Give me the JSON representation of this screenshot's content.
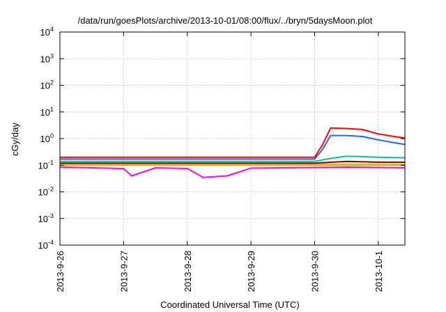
{
  "chart_data": {
    "type": "line",
    "title": "/data/run/goesPlots/archive/2013-10-01/08:00/flux/../bryn/5daysMoon.plot",
    "xlabel": "Coordinated Universal Time (UTC)",
    "ylabel": "cGy/day",
    "y_scale": "log",
    "ylim": [
      0.0001,
      10000
    ],
    "xlim": [
      "2013-09-26T00:00",
      "2013-10-01T10:00"
    ],
    "grid": true,
    "legend": "none",
    "x_ticks": [
      "2013-9-26",
      "2013-9-27",
      "2013-9-28",
      "2013-9-29",
      "2013-9-30",
      "2013-10-1"
    ],
    "y_ticks": [
      {
        "base": "10",
        "exp": "-4",
        "value": 0.0001
      },
      {
        "base": "10",
        "exp": "-3",
        "value": 0.001
      },
      {
        "base": "10",
        "exp": "-2",
        "value": 0.01
      },
      {
        "base": "10",
        "exp": "-1",
        "value": 0.1
      },
      {
        "base": "10",
        "exp": "0",
        "value": 1
      },
      {
        "base": "10",
        "exp": "1",
        "value": 10
      },
      {
        "base": "10",
        "exp": "2",
        "value": 100
      },
      {
        "base": "10",
        "exp": "3",
        "value": 1000
      },
      {
        "base": "10",
        "exp": "4",
        "value": 10000
      }
    ],
    "series": [
      {
        "color": "#ff00ff",
        "x": [
          "2013-09-26T00:00",
          "2013-09-26T12:00",
          "2013-09-27T00:00",
          "2013-09-27T03:00",
          "2013-09-27T12:00",
          "2013-09-28T00:00",
          "2013-09-28T06:00",
          "2013-09-28T15:00",
          "2013-09-29T00:00",
          "2013-09-29T12:00",
          "2013-09-30T00:00",
          "2013-09-30T12:00",
          "2013-10-01T00:00",
          "2013-10-01T10:00"
        ],
        "values": [
          0.085,
          0.08,
          0.075,
          0.04,
          0.08,
          0.075,
          0.035,
          0.04,
          0.078,
          0.08,
          0.082,
          0.085,
          0.082,
          0.08
        ]
      },
      {
        "color": "#ffa500",
        "x": [
          "2013-09-26T00:00",
          "2013-09-27T00:00",
          "2013-09-28T00:00",
          "2013-09-29T00:00",
          "2013-09-30T00:00",
          "2013-09-30T12:00",
          "2013-10-01T00:00",
          "2013-10-01T10:00"
        ],
        "values": [
          0.1,
          0.1,
          0.1,
          0.1,
          0.1,
          0.1,
          0.1,
          0.1
        ]
      },
      {
        "color": "#c8c800",
        "x": [
          "2013-09-26T00:00",
          "2013-09-27T00:00",
          "2013-09-28T00:00",
          "2013-09-29T00:00",
          "2013-09-30T00:00",
          "2013-09-30T12:00",
          "2013-10-01T00:00",
          "2013-10-01T10:00"
        ],
        "values": [
          0.11,
          0.11,
          0.11,
          0.11,
          0.11,
          0.11,
          0.11,
          0.11
        ]
      },
      {
        "color": "#800000",
        "x": [
          "2013-09-26T00:00",
          "2013-09-27T00:00",
          "2013-09-28T00:00",
          "2013-09-29T00:00",
          "2013-09-30T00:00",
          "2013-09-30T12:00",
          "2013-10-01T00:00",
          "2013-10-01T10:00"
        ],
        "values": [
          0.12,
          0.12,
          0.12,
          0.12,
          0.12,
          0.14,
          0.13,
          0.13
        ]
      },
      {
        "color": "#00c88c",
        "x": [
          "2013-09-26T00:00",
          "2013-09-27T00:00",
          "2013-09-28T00:00",
          "2013-09-29T00:00",
          "2013-09-30T00:00",
          "2013-09-30T06:00",
          "2013-09-30T12:00",
          "2013-10-01T00:00",
          "2013-10-01T10:00"
        ],
        "values": [
          0.14,
          0.14,
          0.14,
          0.14,
          0.14,
          0.18,
          0.22,
          0.2,
          0.19
        ]
      },
      {
        "color": "#1e64ff",
        "x": [
          "2013-09-26T00:00",
          "2013-09-27T00:00",
          "2013-09-28T00:00",
          "2013-09-29T00:00",
          "2013-09-30T00:00",
          "2013-09-30T03:00",
          "2013-09-30T06:00",
          "2013-09-30T12:00",
          "2013-09-30T18:00",
          "2013-10-01T00:00",
          "2013-10-01T06:00",
          "2013-10-01T10:00"
        ],
        "values": [
          0.17,
          0.17,
          0.17,
          0.17,
          0.17,
          0.4,
          1.3,
          1.3,
          1.2,
          0.9,
          0.7,
          0.6
        ]
      },
      {
        "color": "#ff0000",
        "x": [
          "2013-09-26T00:00",
          "2013-09-27T00:00",
          "2013-09-28T00:00",
          "2013-09-29T00:00",
          "2013-09-30T00:00",
          "2013-09-30T03:00",
          "2013-09-30T06:00",
          "2013-09-30T12:00",
          "2013-09-30T18:00",
          "2013-10-01T00:00",
          "2013-10-01T06:00",
          "2013-10-01T10:00"
        ],
        "values": [
          0.2,
          0.2,
          0.2,
          0.2,
          0.2,
          0.6,
          2.5,
          2.4,
          2.2,
          1.5,
          1.2,
          1.05
        ]
      }
    ]
  }
}
